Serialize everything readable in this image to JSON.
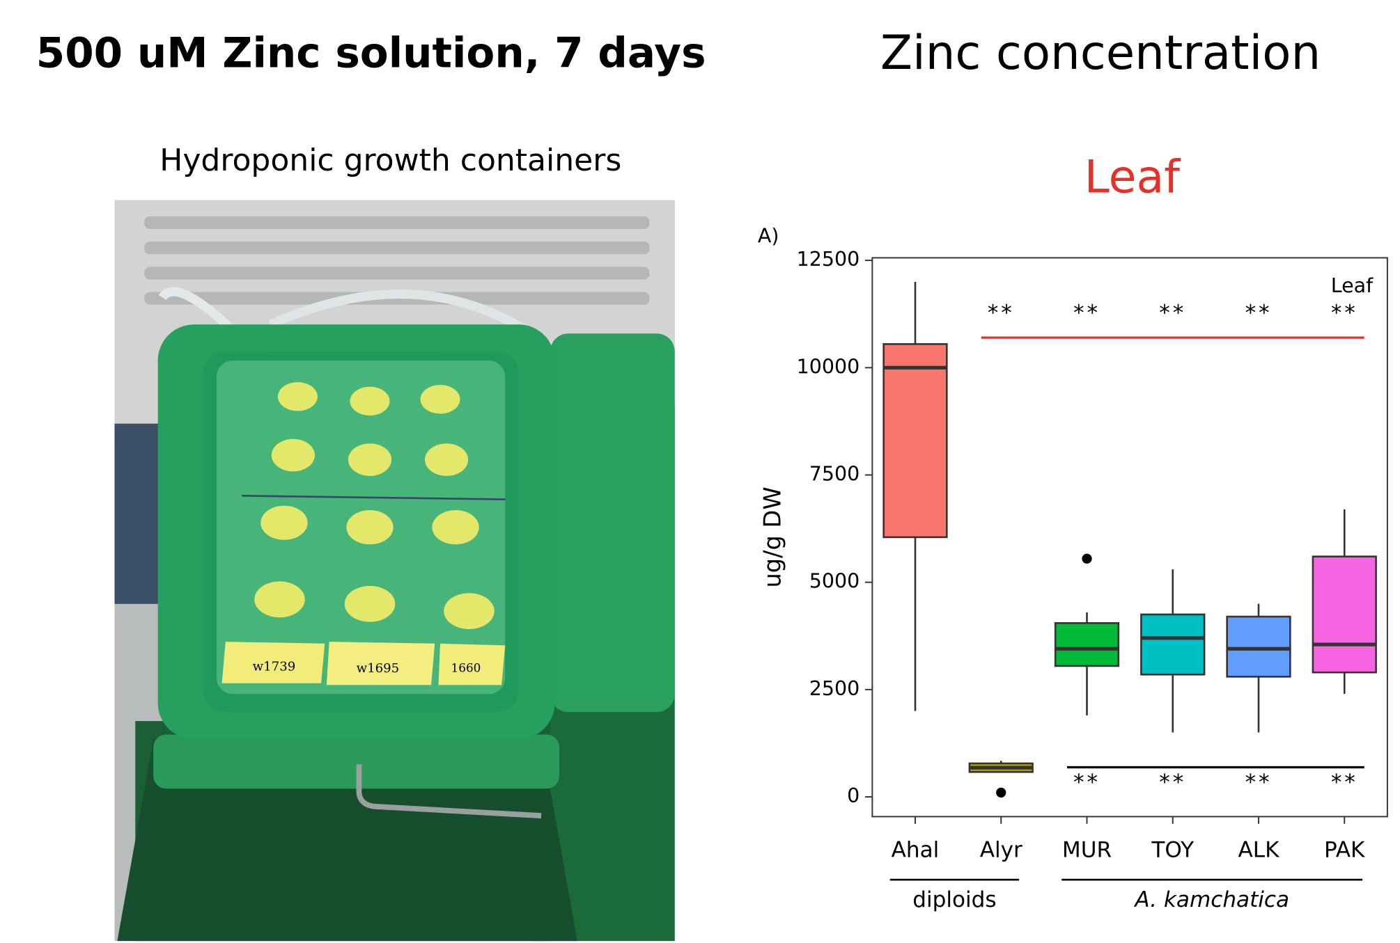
{
  "slide": {
    "title": "500 uM Zinc solution, 7 days",
    "right_title": "Zinc concentration"
  },
  "photo": {
    "caption": "Hydroponic growth containers",
    "labels": [
      "w1739",
      "w1695",
      "1660"
    ]
  },
  "chart_data": {
    "type": "box",
    "title": "Leaf",
    "panel_label": "A)",
    "ylabel": "ug/g DW",
    "categories": [
      "Ahal",
      "Alyr",
      "MUR",
      "TOY",
      "ALK",
      "PAK"
    ],
    "colors": [
      "#f8766d",
      "#b79f00",
      "#00ba38",
      "#00bfc4",
      "#619cff",
      "#f564e3"
    ],
    "boxes": [
      {
        "min": 2000,
        "q1": 6050,
        "median": 10000,
        "q3": 10550,
        "max": 12000,
        "outliers": []
      },
      {
        "min": 560,
        "q1": 580,
        "median": 680,
        "q3": 780,
        "max": 840,
        "outliers": [
          100
        ]
      },
      {
        "min": 1900,
        "q1": 3050,
        "median": 3450,
        "q3": 4050,
        "max": 4300,
        "outliers": [
          5550
        ]
      },
      {
        "min": 1500,
        "q1": 2850,
        "median": 3700,
        "q3": 4250,
        "max": 5300,
        "outliers": []
      },
      {
        "min": 1500,
        "q1": 2800,
        "median": 3450,
        "q3": 4200,
        "max": 4500,
        "outliers": []
      },
      {
        "min": 2400,
        "q1": 2900,
        "median": 3550,
        "q3": 5600,
        "max": 6700,
        "outliers": []
      }
    ],
    "ylim": [
      -460,
      12560
    ],
    "yticks": [
      0,
      2500,
      5000,
      7500,
      10000,
      12500
    ],
    "legend_text": "Leaf",
    "reference_lines": [
      {
        "y": 10700,
        "from": "Alyr",
        "to": "PAK",
        "color": "#e8302a"
      },
      {
        "y": 690,
        "from": "MUR",
        "to": "PAK",
        "color": "#000000"
      }
    ],
    "annotations": [
      {
        "text": "**",
        "category": "Alyr",
        "y": 11250
      },
      {
        "text": "**",
        "category": "MUR",
        "y": 11250
      },
      {
        "text": "**",
        "category": "TOY",
        "y": 11250
      },
      {
        "text": "**",
        "category": "ALK",
        "y": 11250
      },
      {
        "text": "**",
        "category": "PAK",
        "y": 11250
      },
      {
        "text": "**",
        "category": "MUR",
        "y": 320
      },
      {
        "text": "**",
        "category": "TOY",
        "y": 320
      },
      {
        "text": "**",
        "category": "ALK",
        "y": 320
      },
      {
        "text": "**",
        "category": "PAK",
        "y": 320
      }
    ],
    "groups": [
      {
        "label": "diploids",
        "from": "Ahal",
        "to": "Alyr"
      },
      {
        "label": "A. kamchatica",
        "from": "MUR",
        "to": "PAK"
      }
    ]
  }
}
